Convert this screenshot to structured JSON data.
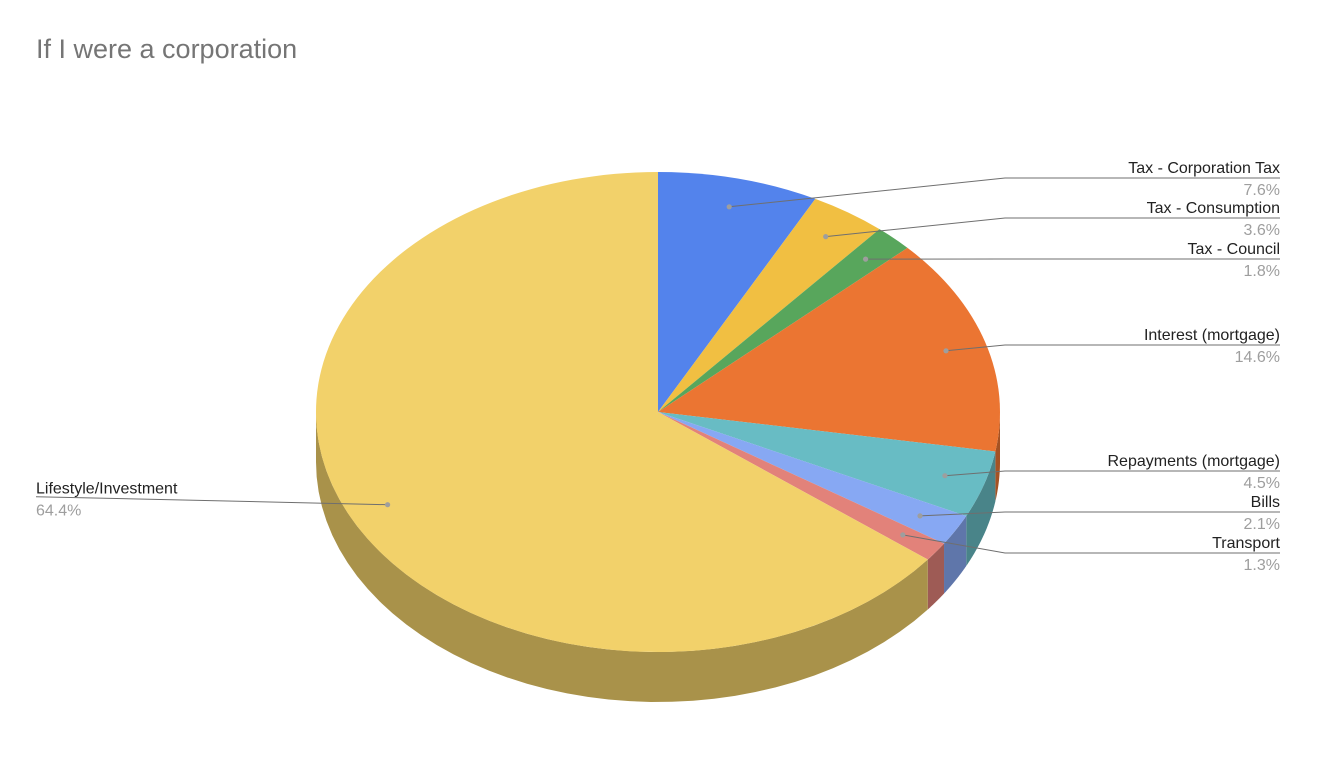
{
  "chart_data": {
    "type": "pie",
    "title": "If I were a corporation",
    "style": "3d",
    "slices": [
      {
        "label": "Tax - Corporation Tax",
        "value": 7.6,
        "display": "7.6%",
        "color": "#5383ec"
      },
      {
        "label": "Tax - Consumption",
        "value": 3.6,
        "display": "3.6%",
        "color": "#f1bf42"
      },
      {
        "label": "Tax - Council",
        "value": 1.8,
        "display": "1.8%",
        "color": "#58a65c"
      },
      {
        "label": "Interest (mortgage)",
        "value": 14.6,
        "display": "14.6%",
        "color": "#eb7532"
      },
      {
        "label": "Repayments (mortgage)",
        "value": 4.5,
        "display": "4.5%",
        "color": "#68bcc4"
      },
      {
        "label": "Bills",
        "value": 2.1,
        "display": "2.1%",
        "color": "#87a8f3"
      },
      {
        "label": "Transport",
        "value": 1.3,
        "display": "1.3%",
        "color": "#e2827a"
      },
      {
        "label": "Lifestyle/Investment",
        "value": 64.4,
        "display": "64.4%",
        "color": "#f2d16a"
      }
    ]
  }
}
